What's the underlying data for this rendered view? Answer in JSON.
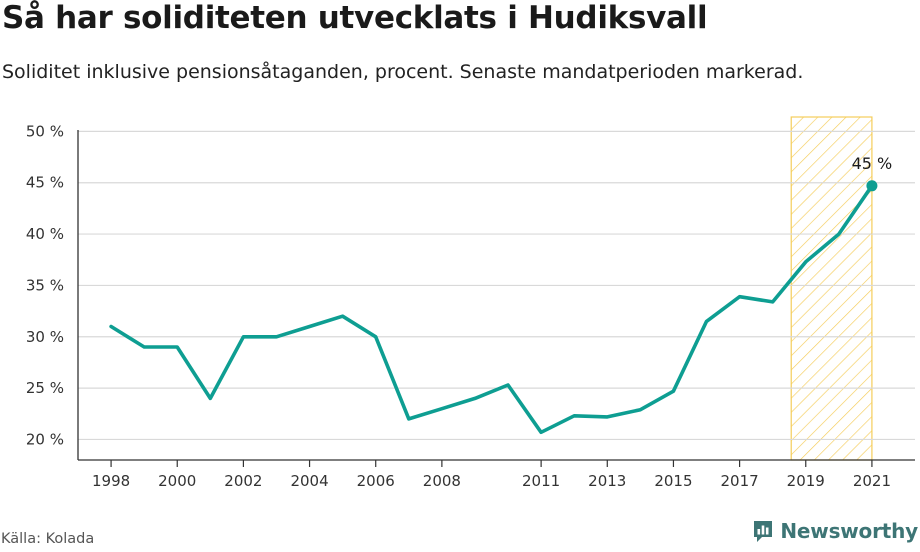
{
  "title": "Så har soliditeten utvecklats i Hudiksvall",
  "subtitle": "Soliditet inklusive pensionsåtaganden, procent. Senaste mandatperioden markerad.",
  "source": "Källa: Kolada",
  "brand": "Newsworthy",
  "colors": {
    "line": "#0e9e92",
    "highlight_stroke": "#f5cd5a",
    "highlight_fill": "#fdf3d6",
    "grid": "#d9d9d9",
    "brand": "#3d7575"
  },
  "chart_data": {
    "type": "line",
    "title": "Så har soliditeten utvecklats i Hudiksvall",
    "ylabel": "",
    "xlabel": "",
    "ylim": [
      18,
      51
    ],
    "xlim": [
      1997,
      2022
    ],
    "yticks": [
      20,
      25,
      30,
      35,
      40,
      45,
      50
    ],
    "ytick_labels": [
      "20 %",
      "25 %",
      "30 %",
      "35 %",
      "40 %",
      "45 %",
      "50 %"
    ],
    "xticks": [
      1998,
      2000,
      2002,
      2004,
      2006,
      2008,
      2011,
      2013,
      2015,
      2017,
      2019,
      2021
    ],
    "xtick_labels": [
      "1998",
      "2000",
      "2002",
      "2004",
      "2006",
      "2008",
      "2011",
      "2013",
      "2015",
      "2017",
      "2019",
      "2021"
    ],
    "grid": true,
    "highlight": {
      "label": "Senaste mandatperioden",
      "from": 2018.5,
      "to": 2021
    },
    "annotation": {
      "x": 2021,
      "y": 44.7,
      "text": "45 %"
    },
    "series": [
      {
        "x": [
          1998,
          1999,
          2000,
          2001,
          2002,
          2003,
          2004,
          2005,
          2006,
          2007,
          2008,
          2009,
          2010,
          2011,
          2012,
          2013,
          2014,
          2015,
          2016,
          2017,
          2018,
          2019,
          2020,
          2021
        ],
        "y": [
          31,
          29,
          29,
          24,
          30,
          30,
          31,
          32,
          30,
          22,
          23,
          24,
          25.3,
          20.7,
          22.3,
          22.2,
          22.9,
          24.7,
          31.5,
          33.9,
          33.4,
          37.3,
          40,
          44.7
        ]
      }
    ]
  }
}
